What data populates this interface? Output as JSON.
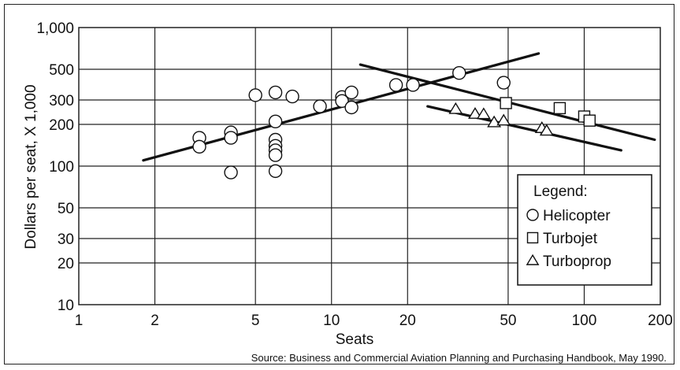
{
  "chart_data": {
    "type": "scatter",
    "title": "",
    "xlabel": "Seats",
    "ylabel": "Dollars per seat, X 1,000",
    "x_scale": "log",
    "y_scale": "log",
    "xlim": [
      1,
      200
    ],
    "ylim": [
      10,
      1000
    ],
    "x_ticks": [
      1,
      2,
      5,
      10,
      20,
      50,
      100,
      200
    ],
    "x_tick_labels": [
      "1",
      "2",
      "5",
      "10",
      "20",
      "50",
      "100",
      "200"
    ],
    "y_ticks": [
      10,
      20,
      30,
      50,
      100,
      200,
      300,
      500,
      1000
    ],
    "y_tick_labels": [
      "10",
      "20",
      "30",
      "50",
      "100",
      "200",
      "300",
      "500",
      "1,000"
    ],
    "grid": true,
    "legend_position": "bottom-right",
    "legend_title": "Legend:",
    "series": [
      {
        "name": "Helicopter",
        "marker": "circle",
        "points": [
          [
            3,
            160
          ],
          [
            3,
            138
          ],
          [
            4,
            175
          ],
          [
            4,
            160
          ],
          [
            4,
            90
          ],
          [
            5,
            325
          ],
          [
            6,
            340
          ],
          [
            6,
            210
          ],
          [
            6,
            155
          ],
          [
            6,
            140
          ],
          [
            6,
            130
          ],
          [
            6,
            120
          ],
          [
            6,
            92
          ],
          [
            7,
            318
          ],
          [
            9,
            270
          ],
          [
            11,
            315
          ],
          [
            11,
            295
          ],
          [
            12,
            340
          ],
          [
            12,
            265
          ],
          [
            18,
            385
          ],
          [
            21,
            385
          ],
          [
            32,
            470
          ],
          [
            48,
            400
          ]
        ]
      },
      {
        "name": "Turbojet",
        "marker": "square",
        "points": [
          [
            49,
            285
          ],
          [
            80,
            262
          ],
          [
            100,
            228
          ],
          [
            105,
            213
          ]
        ]
      },
      {
        "name": "Turboprop",
        "marker": "triangle",
        "points": [
          [
            31,
            258
          ],
          [
            37,
            238
          ],
          [
            40,
            237
          ],
          [
            44,
            207
          ],
          [
            48,
            213
          ],
          [
            68,
            188
          ],
          [
            71,
            180
          ]
        ]
      }
    ],
    "trend_lines": [
      {
        "series": "Helicopter",
        "points": [
          [
            1.8,
            110
          ],
          [
            66,
            650
          ]
        ]
      },
      {
        "series": "Turbojet",
        "points": [
          [
            13,
            540
          ],
          [
            190,
            155
          ]
        ]
      },
      {
        "series": "Turboprop",
        "points": [
          [
            24,
            270
          ],
          [
            140,
            130
          ]
        ]
      }
    ],
    "source": "Source: Business and Commercial Aviation Planning and Purchasing Handbook, May 1990."
  }
}
